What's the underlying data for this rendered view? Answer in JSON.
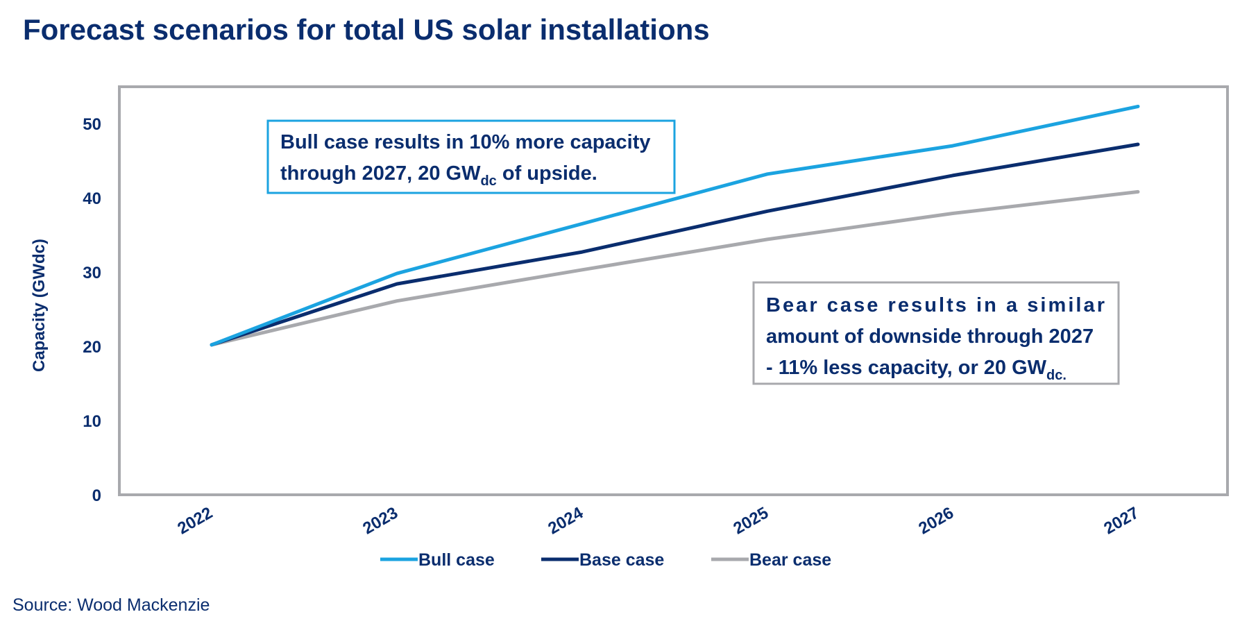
{
  "title": "Forecast scenarios for total US solar installations",
  "source": "Source: Wood Mackenzie",
  "colors": {
    "title": "#0a2d6e",
    "text": "#0a2d6e",
    "bull": "#1ba3e0",
    "base": "#0a2d6e",
    "bear": "#a8a9ad",
    "frame": "#a8a9ad"
  },
  "annotations": {
    "bull": {
      "line1": "Bull case results in 10% more capacity",
      "line2_a": "through 2027, 20 GW",
      "line2_sub": "dc",
      "line2_b": " of upside."
    },
    "bear": {
      "line1": "Bear case results in a similar",
      "line2": "amount of downside through 2027",
      "line3_a": "- 11% less capacity, or 20 GW",
      "line3_sub": "dc."
    }
  },
  "chart_data": {
    "type": "line",
    "title": "Forecast scenarios for total US solar installations",
    "xlabel": "",
    "ylabel": "Capacity (GWdc)",
    "x": [
      "2022",
      "2023",
      "2024",
      "2025",
      "2026",
      "2027"
    ],
    "ylim": [
      0,
      55
    ],
    "yticks": [
      0,
      10,
      20,
      30,
      40,
      50
    ],
    "grid": false,
    "legend_position": "bottom",
    "series": [
      {
        "name": "Bull case",
        "color": "#1ba3e0",
        "values": [
          20.2,
          29.8,
          36.5,
          43.2,
          47.0,
          52.3
        ]
      },
      {
        "name": "Base case",
        "color": "#0a2d6e",
        "values": [
          20.2,
          28.4,
          32.7,
          38.2,
          43.0,
          47.2
        ]
      },
      {
        "name": "Bear case",
        "color": "#a8a9ad",
        "values": [
          20.2,
          26.1,
          30.3,
          34.4,
          37.9,
          40.8
        ]
      }
    ]
  }
}
